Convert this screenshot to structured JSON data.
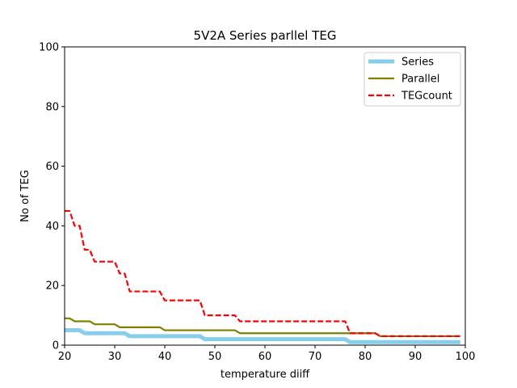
{
  "chart_data": {
    "type": "line",
    "title": "5V2A Series parllel TEG",
    "xlabel": "temperature diiff",
    "ylabel": "No of TEG",
    "xlim": [
      20,
      100
    ],
    "ylim": [
      0,
      100
    ],
    "x_ticks": [
      "20",
      "30",
      "40",
      "50",
      "60",
      "70",
      "80",
      "90",
      "100"
    ],
    "y_ticks": [
      "0",
      "20",
      "40",
      "60",
      "80",
      "100"
    ],
    "grid": false,
    "legend_position": "top-right",
    "x": [
      20,
      21,
      22,
      23,
      24,
      25,
      26,
      27,
      28,
      29,
      30,
      31,
      32,
      33,
      34,
      35,
      36,
      37,
      38,
      39,
      40,
      41,
      42,
      43,
      44,
      45,
      46,
      47,
      48,
      49,
      50,
      51,
      52,
      53,
      54,
      55,
      56,
      57,
      58,
      59,
      60,
      61,
      62,
      63,
      64,
      65,
      66,
      67,
      68,
      69,
      70,
      71,
      72,
      73,
      74,
      75,
      76,
      77,
      78,
      79,
      80,
      81,
      82,
      83,
      84,
      85,
      86,
      87,
      88,
      89,
      90,
      91,
      92,
      93,
      94,
      95,
      96,
      97,
      98,
      99
    ],
    "series": [
      {
        "name": "Series",
        "color": "#87ceeb",
        "style": "solid",
        "values": [
          5,
          5,
          5,
          5,
          4,
          4,
          4,
          4,
          4,
          4,
          4,
          4,
          4,
          3,
          3,
          3,
          3,
          3,
          3,
          3,
          3,
          3,
          3,
          3,
          3,
          3,
          3,
          3,
          2,
          2,
          2,
          2,
          2,
          2,
          2,
          2,
          2,
          2,
          2,
          2,
          2,
          2,
          2,
          2,
          2,
          2,
          2,
          2,
          2,
          2,
          2,
          2,
          2,
          2,
          2,
          2,
          2,
          1,
          1,
          1,
          1,
          1,
          1,
          1,
          1,
          1,
          1,
          1,
          1,
          1,
          1,
          1,
          1,
          1,
          1,
          1,
          1,
          1,
          1,
          1
        ]
      },
      {
        "name": "Parallel",
        "color": "#808000",
        "style": "solid",
        "values": [
          9,
          9,
          8,
          8,
          8,
          8,
          7,
          7,
          7,
          7,
          7,
          6,
          6,
          6,
          6,
          6,
          6,
          6,
          6,
          6,
          5,
          5,
          5,
          5,
          5,
          5,
          5,
          5,
          5,
          5,
          5,
          5,
          5,
          5,
          5,
          4,
          4,
          4,
          4,
          4,
          4,
          4,
          4,
          4,
          4,
          4,
          4,
          4,
          4,
          4,
          4,
          4,
          4,
          4,
          4,
          4,
          4,
          4,
          4,
          4,
          4,
          4,
          4,
          3,
          3,
          3,
          3,
          3,
          3,
          3,
          3,
          3,
          3,
          3,
          3,
          3,
          3,
          3,
          3,
          3
        ]
      },
      {
        "name": "TEGcount",
        "color": "#ff0000",
        "style": "dashed",
        "values": [
          45,
          45,
          40,
          40,
          32,
          32,
          28,
          28,
          28,
          28,
          28,
          24,
          24,
          18,
          18,
          18,
          18,
          18,
          18,
          18,
          15,
          15,
          15,
          15,
          15,
          15,
          15,
          15,
          10,
          10,
          10,
          10,
          10,
          10,
          10,
          8,
          8,
          8,
          8,
          8,
          8,
          8,
          8,
          8,
          8,
          8,
          8,
          8,
          8,
          8,
          8,
          8,
          8,
          8,
          8,
          8,
          8,
          4,
          4,
          4,
          4,
          4,
          4,
          3,
          3,
          3,
          3,
          3,
          3,
          3,
          3,
          3,
          3,
          3,
          3,
          3,
          3,
          3,
          3,
          3
        ]
      }
    ]
  }
}
